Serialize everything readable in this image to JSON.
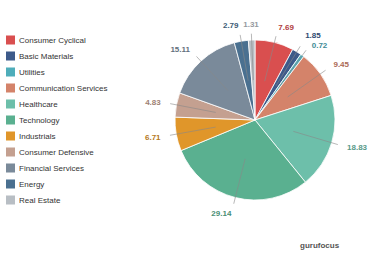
{
  "chart_data": {
    "type": "pie",
    "categories": [
      "Consumer Cyclical",
      "Basic Materials",
      "Utilities",
      "Communication Services",
      "Healthcare",
      "Technology",
      "Industrials",
      "Consumer Defensive",
      "Financial Services",
      "Energy",
      "Real Estate"
    ],
    "values": [
      7.69,
      1.85,
      0.72,
      9.45,
      18.83,
      29.14,
      6.71,
      4.83,
      15.11,
      2.79,
      1.31
    ],
    "colors": [
      "#d94f4f",
      "#3d5a8a",
      "#4eadba",
      "#d4836a",
      "#6dbfaa",
      "#5ab090",
      "#e0962a",
      "#c4a090",
      "#7a8a9a",
      "#4a7090",
      "#b8bec4"
    ],
    "data_labels": true,
    "legend": "left",
    "annotations": [
      "guru",
      "focus"
    ]
  }
}
